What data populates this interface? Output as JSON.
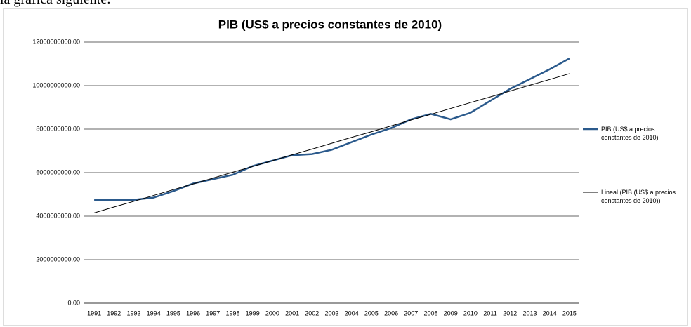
{
  "intro": "la gráfica siguiente:",
  "chart_data": {
    "type": "line",
    "title": "PIB (US$ a precios constantes de 2010)",
    "categories": [
      "1991",
      "1992",
      "1993",
      "1994",
      "1995",
      "1996",
      "1997",
      "1998",
      "1999",
      "2000",
      "2001",
      "2002",
      "2003",
      "2004",
      "2005",
      "2006",
      "2007",
      "2008",
      "2009",
      "2010",
      "2011",
      "2012",
      "2013",
      "2014",
      "2015"
    ],
    "series": [
      {
        "name": "PIB (US$ a precios constantes de 2010)",
        "color": "#2b5a8c",
        "values": [
          4750000000,
          4750000000,
          4750000000,
          4850000000,
          5150000000,
          5500000000,
          5700000000,
          5900000000,
          6300000000,
          6550000000,
          6800000000,
          6850000000,
          7050000000,
          7400000000,
          7750000000,
          8050000000,
          8450000000,
          8700000000,
          8450000000,
          8750000000,
          9300000000,
          9850000000,
          10300000000,
          10750000000,
          11250000000
        ]
      },
      {
        "name": "Lineal (PIB (US$ a precios constantes de 2010))",
        "color": "#000000",
        "values": [
          4150000000,
          4420000000,
          4680000000,
          4950000000,
          5220000000,
          5480000000,
          5750000000,
          6020000000,
          6280000000,
          6550000000,
          6820000000,
          7080000000,
          7350000000,
          7620000000,
          7880000000,
          8150000000,
          8420000000,
          8680000000,
          8950000000,
          9220000000,
          9480000000,
          9750000000,
          10020000000,
          10280000000,
          10550000000
        ]
      }
    ],
    "ylim": [
      0,
      12000000000
    ],
    "yticks": [
      {
        "value": 0,
        "label": "0.00"
      },
      {
        "value": 2000000000,
        "label": "2000000000.00"
      },
      {
        "value": 4000000000,
        "label": "4000000000.00"
      },
      {
        "value": 6000000000,
        "label": "6000000000.00"
      },
      {
        "value": 8000000000,
        "label": "8000000000.00"
      },
      {
        "value": 10000000000,
        "label": "10000000000.00"
      },
      {
        "value": 12000000000,
        "label": "12000000000.00"
      }
    ],
    "grid": true
  }
}
